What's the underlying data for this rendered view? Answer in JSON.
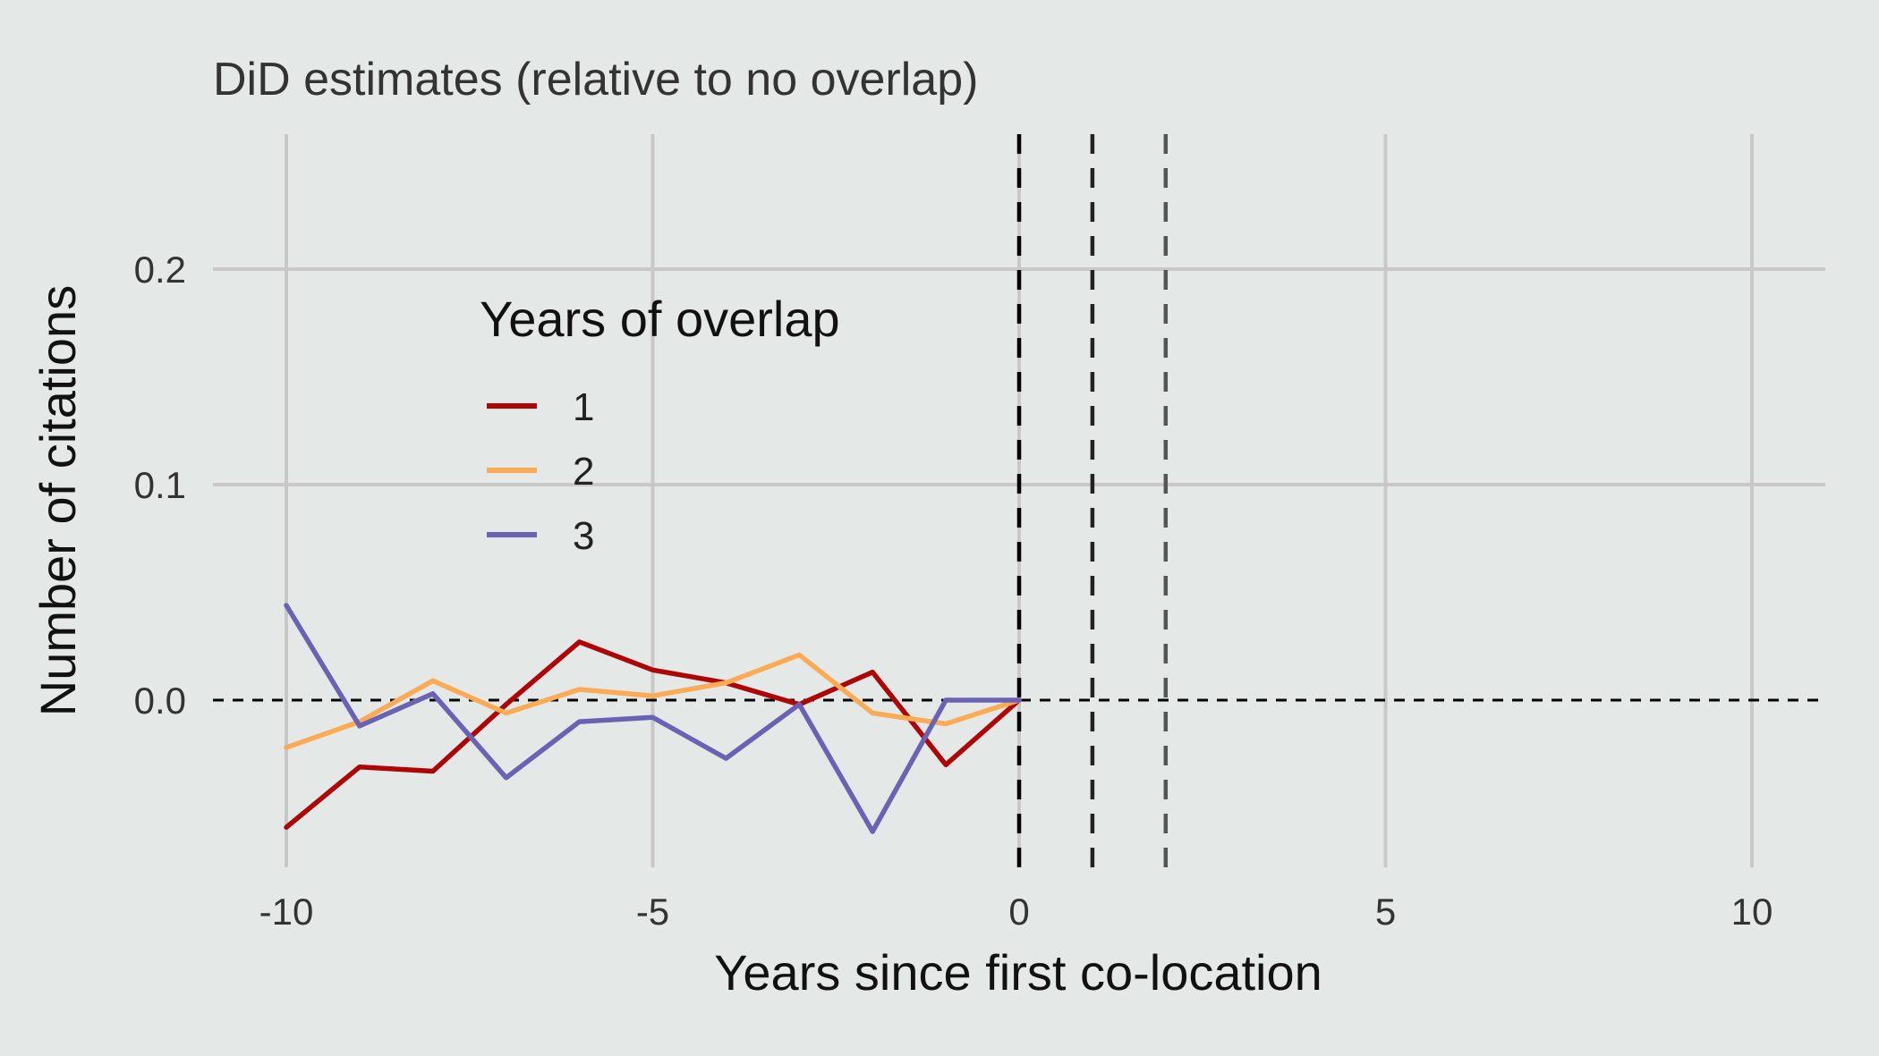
{
  "chart_data": {
    "type": "line",
    "title": "DiD estimates (relative to no overlap)",
    "xlabel": "Years since first co-location",
    "ylabel": "Number of citations",
    "xlim": [
      -11,
      11
    ],
    "ylim": [
      -0.077,
      0.261
    ],
    "x_ticks": [
      -10,
      -5,
      0,
      5,
      10
    ],
    "x_tick_labels": [
      "-10",
      "-5",
      "0",
      "5",
      "10"
    ],
    "y_ticks": [
      0.0,
      0.1,
      0.2
    ],
    "y_tick_labels": [
      "0.0",
      "0.1",
      "0.2"
    ],
    "grid": true,
    "reference_lines": {
      "horizontal": [
        0
      ],
      "vertical": [
        {
          "x": 0,
          "color": "#000000"
        },
        {
          "x": 1,
          "color": "#222222"
        },
        {
          "x": 2,
          "color": "#555555"
        }
      ]
    },
    "legend": {
      "title": "Years of overlap",
      "placement": "upper-left inside"
    },
    "x": [
      -10,
      -9,
      -8,
      -7,
      -6,
      -5,
      -4,
      -3,
      -2,
      -1,
      0
    ],
    "series": [
      {
        "name": "1",
        "color": "#ae0606",
        "values": [
          -0.059,
          -0.031,
          -0.033,
          -0.002,
          0.027,
          0.014,
          0.008,
          -0.002,
          0.013,
          -0.03,
          0.0
        ]
      },
      {
        "name": "2",
        "color": "#fbaa55",
        "values": [
          -0.022,
          -0.01,
          0.009,
          -0.006,
          0.005,
          0.002,
          0.008,
          0.021,
          -0.006,
          -0.011,
          0.0
        ]
      },
      {
        "name": "3",
        "color": "#6a63b3",
        "values": [
          0.044,
          -0.012,
          0.003,
          -0.036,
          -0.01,
          -0.008,
          -0.027,
          -0.002,
          -0.061,
          0.0,
          0.0
        ]
      }
    ]
  }
}
